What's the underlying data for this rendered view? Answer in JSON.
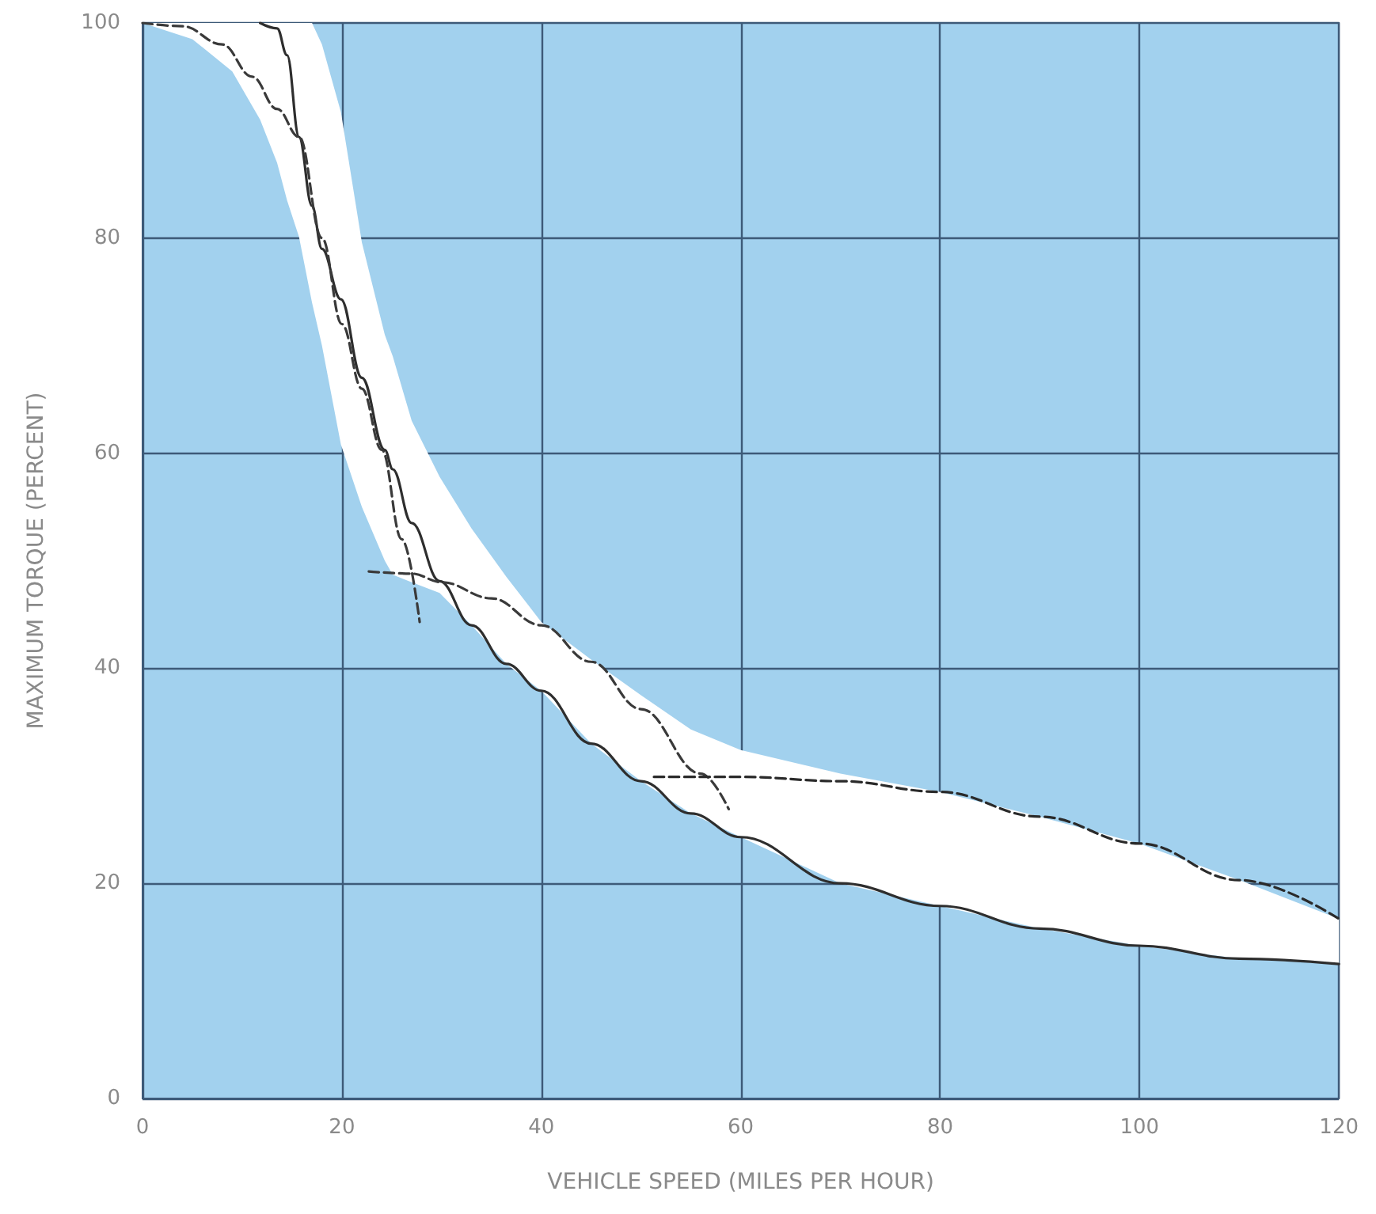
{
  "chart_data": {
    "type": "line",
    "xlabel": "VEHICLE SPEED (MILES PER HOUR)",
    "ylabel": "MAXIMUM TORQUE (PERCENT)",
    "xlim": [
      0,
      120
    ],
    "ylim": [
      0,
      100
    ],
    "xticks": [
      0,
      20,
      40,
      60,
      80,
      100,
      120
    ],
    "yticks": [
      0,
      20,
      40,
      60,
      80,
      100
    ],
    "grid": true,
    "series": [
      {
        "color": "#2e2e2e",
        "line_style": "solid",
        "x": [
          0,
          5,
          9,
          11.8,
          13.5,
          14.5,
          15.7,
          17,
          18,
          19.9,
          22,
          24.3,
          25.1,
          27,
          29.8,
          33,
          36.5,
          40,
          45,
          50,
          55,
          60,
          70,
          80,
          90,
          100,
          110,
          120
        ],
        "values": [
          null,
          null,
          null,
          100,
          99.5,
          97,
          89.4,
          83,
          79,
          74.3,
          67,
          60.3,
          58.5,
          53.5,
          48.1,
          44,
          40.4,
          37.9,
          33,
          29.5,
          26.5,
          24.3,
          20,
          17.9,
          15.8,
          14.2,
          13,
          12.5
        ],
        "lower": [
          100,
          98.5,
          95.5,
          91,
          87,
          83.5,
          80.1,
          74,
          70,
          60.8,
          55,
          50,
          48.7,
          48,
          47,
          44,
          40.4,
          37.9,
          33,
          29.5,
          26.5,
          24.3,
          20,
          17.9,
          15.8,
          14.2,
          13,
          12.5
        ],
        "upper": [
          100,
          100,
          100,
          100,
          100,
          100,
          100,
          100,
          98,
          91.7,
          79.6,
          71,
          69,
          63,
          57.8,
          53,
          48.5,
          44.3,
          40.8,
          37.5,
          34.3,
          32.4,
          30.2,
          28.5,
          26.2,
          23.7,
          20.3,
          16.7
        ]
      },
      {
        "color": "#3a3a3a",
        "line_style": "dashed",
        "x": [
          0,
          4,
          8,
          11,
          13.5,
          15.7,
          18,
          20,
          22,
          24,
          26,
          27.8
        ],
        "values": [
          100,
          99.7,
          98,
          95,
          92,
          89.4,
          80,
          72,
          66,
          60.3,
          52,
          44.3
        ]
      },
      {
        "color": "#3a3a3a",
        "line_style": "dashed",
        "x": [
          22.7,
          27,
          30,
          35,
          40,
          45,
          50,
          56,
          58.8
        ],
        "values": [
          49,
          48.8,
          48,
          46.5,
          44,
          40.6,
          36.2,
          30.2,
          26.9
        ]
      },
      {
        "color": "#2a2a2a",
        "line_style": "dashed",
        "x": [
          51.3,
          56,
          60,
          70,
          80,
          90,
          100,
          110,
          120
        ],
        "values": [
          29.9,
          29.9,
          29.9,
          29.5,
          28.5,
          26.2,
          23.7,
          20.3,
          16.7
        ]
      }
    ]
  }
}
